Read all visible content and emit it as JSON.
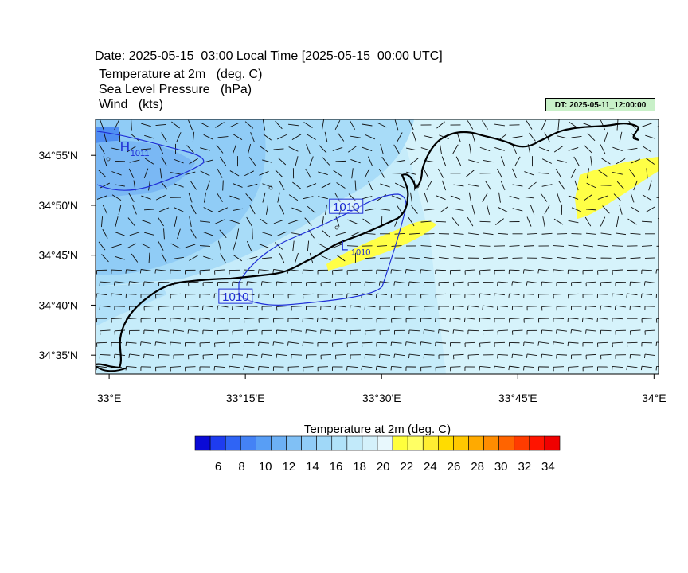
{
  "header": {
    "date_line": "Date: 2025-05-15  03:00 Local Time [2025-05-15  00:00 UTC]",
    "var_temperature": "Temperature at 2m   (deg. C)",
    "var_pressure": "Sea Level Pressure   (hPa)",
    "var_wind": "Wind   (kts)",
    "dt_label": "DT: 2025-05-11_12:00:00"
  },
  "axes": {
    "lon_ticks": [
      "33°E",
      "33°15'E",
      "33°30'E",
      "33°45'E",
      "34°E"
    ],
    "lat_ticks": [
      "34°55'N",
      "34°50'N",
      "34°45'N",
      "34°40'N",
      "34°35'N"
    ]
  },
  "map": {
    "lon_range": [
      32.975,
      34.0083
    ],
    "lat_range": [
      34.5517,
      34.9767
    ],
    "pressure_labels": [
      {
        "text": "1010",
        "lon": 33.435,
        "lat": 34.8317
      },
      {
        "text": "1010",
        "lon": 33.232,
        "lat": 34.6817
      }
    ],
    "centers": [
      {
        "letter": "H",
        "value": "1011",
        "lon": 33.02,
        "lat": 34.9233
      },
      {
        "letter": "L",
        "value": "1010",
        "lon": 33.425,
        "lat": 34.7583
      }
    ]
  },
  "colorbar": {
    "title": "Temperature at 2m  (deg. C)",
    "labels": [
      "6",
      "8",
      "10",
      "12",
      "14",
      "16",
      "18",
      "20",
      "22",
      "24",
      "26",
      "28",
      "30",
      "32",
      "34"
    ],
    "colors": [
      "#0a0ad6",
      "#1e3cf0",
      "#2f64f5",
      "#4482f5",
      "#589ef5",
      "#6cb0f5",
      "#80c0f5",
      "#90ccf7",
      "#a0d8f8",
      "#b0e2f9",
      "#c2eafa",
      "#d4f1fb",
      "#e8f8fd",
      "#ffff3c",
      "#ffff64",
      "#ffee32",
      "#ffdc00",
      "#ffc800",
      "#ffaa00",
      "#ff8c00",
      "#ff6400",
      "#ff3c00",
      "#ff1400",
      "#f00000"
    ]
  }
}
